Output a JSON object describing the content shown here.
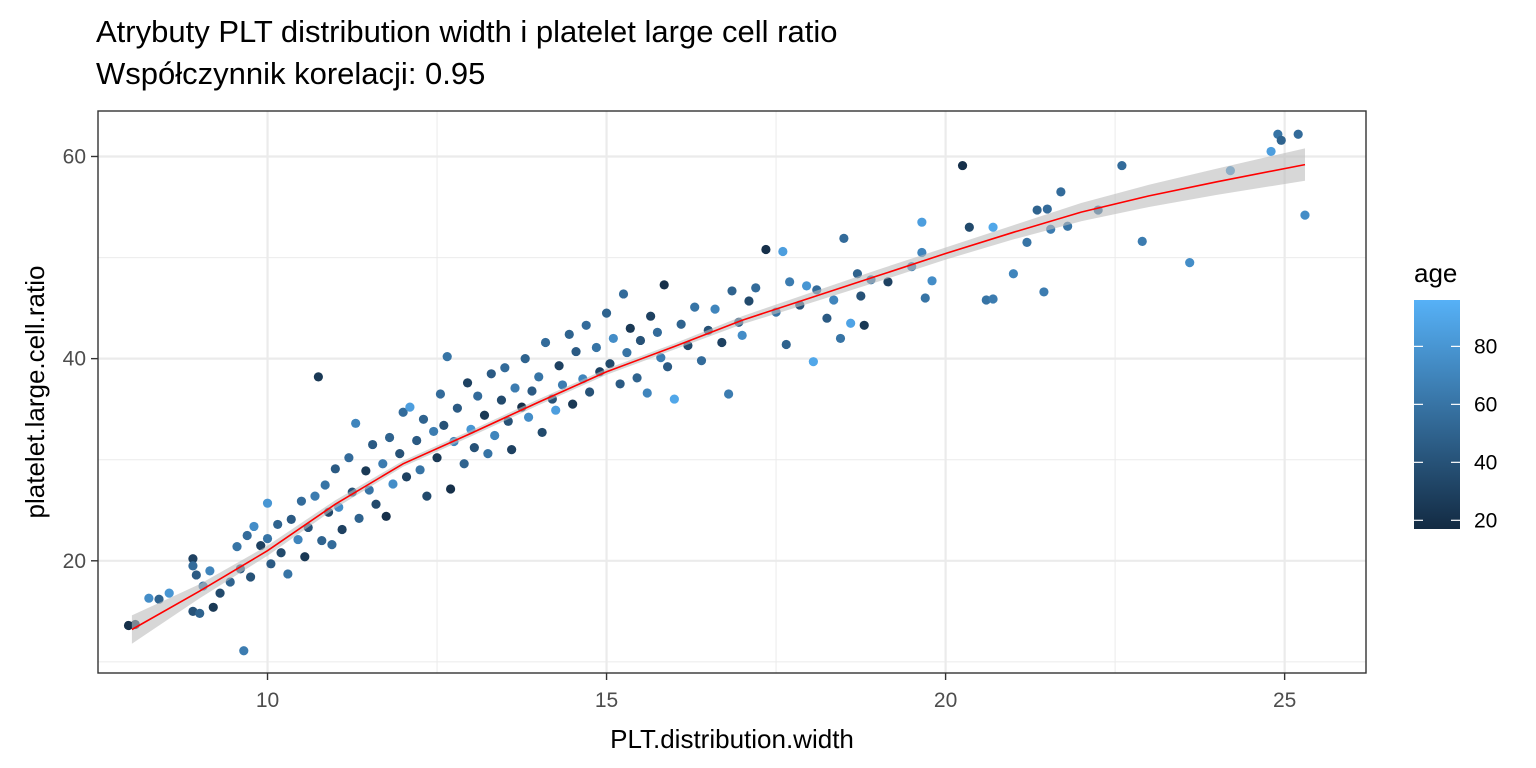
{
  "chart_data": {
    "type": "scatter",
    "title": "Atrybuty PLT distribution width i platelet large cell ratio",
    "subtitle": "Współczynnik korelacji: 0.95",
    "xlabel": "PLT.distribution.width",
    "ylabel": "platelet.large.cell.ratio",
    "xlim": [
      7.5,
      26.2
    ],
    "ylim": [
      8.9,
      64.5
    ],
    "x_ticks": [
      10,
      15,
      20,
      25
    ],
    "y_ticks": [
      20,
      40,
      60
    ],
    "grid": true,
    "legend": {
      "title": "age",
      "position": "right",
      "range": [
        17,
        96
      ],
      "ticks": [
        20,
        40,
        60,
        80
      ],
      "color_low": "#132b43",
      "color_high": "#56b1f7"
    },
    "colors": {
      "panel_bg": "#ffffff",
      "grid": "#ebebeb",
      "panel_border": "#333333",
      "smooth_line": "#ff0000",
      "smooth_band": "#bdbdbd"
    },
    "smooth": {
      "x": [
        8.0,
        9.0,
        10.0,
        11.0,
        12.0,
        13.0,
        14.0,
        15.0,
        16.0,
        17.0,
        18.0,
        19.0,
        20.0,
        21.0,
        22.0,
        23.0,
        24.0,
        25.3
      ],
      "y": [
        13.2,
        17.0,
        21.0,
        25.6,
        29.6,
        32.6,
        35.7,
        38.7,
        41.2,
        43.8,
        46.0,
        48.2,
        50.4,
        52.5,
        54.5,
        56.1,
        57.5,
        59.2
      ],
      "se_lower": [
        11.8,
        16.3,
        20.5,
        25.2,
        29.3,
        32.3,
        35.4,
        38.4,
        40.9,
        43.4,
        45.5,
        47.6,
        49.8,
        51.8,
        53.6,
        55.0,
        56.2,
        57.6
      ],
      "se_upper": [
        14.6,
        17.7,
        21.5,
        26.0,
        29.9,
        32.9,
        36.0,
        39.0,
        41.5,
        44.2,
        46.5,
        48.8,
        51.0,
        53.2,
        55.4,
        57.2,
        58.8,
        60.8
      ]
    },
    "points": [
      [
        7.95,
        13.6,
        20
      ],
      [
        8.05,
        13.7,
        25
      ],
      [
        8.25,
        16.3,
        75
      ],
      [
        8.4,
        16.2,
        50
      ],
      [
        8.55,
        16.8,
        80
      ],
      [
        9.65,
        11.1,
        65
      ],
      [
        8.9,
        20.2,
        30
      ],
      [
        8.9,
        19.5,
        55
      ],
      [
        8.95,
        18.6,
        45
      ],
      [
        8.9,
        15.0,
        40
      ],
      [
        9.0,
        14.8,
        50
      ],
      [
        9.05,
        17.5,
        60
      ],
      [
        9.15,
        19.0,
        70
      ],
      [
        9.2,
        15.4,
        25
      ],
      [
        9.3,
        16.8,
        35
      ],
      [
        9.45,
        17.9,
        50
      ],
      [
        9.55,
        21.4,
        60
      ],
      [
        9.6,
        19.2,
        45
      ],
      [
        9.7,
        22.5,
        55
      ],
      [
        9.75,
        18.4,
        40
      ],
      [
        9.8,
        23.4,
        75
      ],
      [
        9.9,
        21.5,
        30
      ],
      [
        10.0,
        22.2,
        60
      ],
      [
        10.0,
        25.7,
        80
      ],
      [
        10.05,
        19.7,
        45
      ],
      [
        10.15,
        23.6,
        50
      ],
      [
        10.2,
        20.8,
        35
      ],
      [
        10.3,
        18.7,
        60
      ],
      [
        10.35,
        24.1,
        45
      ],
      [
        10.45,
        22.1,
        70
      ],
      [
        10.5,
        25.9,
        55
      ],
      [
        10.55,
        20.4,
        25
      ],
      [
        10.6,
        23.3,
        40
      ],
      [
        10.7,
        26.4,
        65
      ],
      [
        10.75,
        38.2,
        25
      ],
      [
        10.8,
        22.0,
        50
      ],
      [
        10.85,
        27.5,
        60
      ],
      [
        10.9,
        24.8,
        35
      ],
      [
        10.95,
        21.6,
        55
      ],
      [
        11.0,
        29.1,
        45
      ],
      [
        11.05,
        25.3,
        75
      ],
      [
        11.1,
        23.1,
        30
      ],
      [
        11.2,
        30.2,
        55
      ],
      [
        11.25,
        26.8,
        40
      ],
      [
        11.3,
        33.6,
        70
      ],
      [
        11.35,
        24.2,
        50
      ],
      [
        11.45,
        28.9,
        25
      ],
      [
        11.5,
        27.0,
        60
      ],
      [
        11.55,
        31.5,
        45
      ],
      [
        11.6,
        25.6,
        35
      ],
      [
        11.7,
        29.6,
        65
      ],
      [
        11.75,
        24.4,
        20
      ],
      [
        11.8,
        32.2,
        50
      ],
      [
        11.85,
        27.6,
        75
      ],
      [
        11.95,
        30.6,
        40
      ],
      [
        12.0,
        34.7,
        55
      ],
      [
        12.05,
        28.3,
        30
      ],
      [
        12.1,
        35.2,
        85
      ],
      [
        12.2,
        31.9,
        45
      ],
      [
        12.25,
        29.0,
        60
      ],
      [
        12.3,
        34.0,
        50
      ],
      [
        12.35,
        26.4,
        35
      ],
      [
        12.45,
        32.8,
        65
      ],
      [
        12.5,
        30.2,
        25
      ],
      [
        12.55,
        36.5,
        55
      ],
      [
        12.6,
        33.4,
        40
      ],
      [
        12.65,
        40.2,
        60
      ],
      [
        12.7,
        27.1,
        20
      ],
      [
        12.75,
        31.8,
        70
      ],
      [
        12.8,
        35.1,
        45
      ],
      [
        12.9,
        29.6,
        50
      ],
      [
        12.95,
        37.6,
        30
      ],
      [
        13.0,
        33.0,
        80
      ],
      [
        13.05,
        31.2,
        40
      ],
      [
        13.1,
        36.3,
        55
      ],
      [
        13.2,
        34.4,
        25
      ],
      [
        13.25,
        30.6,
        60
      ],
      [
        13.3,
        38.5,
        45
      ],
      [
        13.35,
        32.4,
        70
      ],
      [
        13.45,
        35.9,
        35
      ],
      [
        13.5,
        39.1,
        55
      ],
      [
        13.55,
        33.8,
        40
      ],
      [
        13.6,
        31.0,
        30
      ],
      [
        13.65,
        37.1,
        65
      ],
      [
        13.75,
        35.2,
        20
      ],
      [
        13.8,
        40.0,
        50
      ],
      [
        13.85,
        34.2,
        75
      ],
      [
        13.9,
        36.8,
        45
      ],
      [
        14.0,
        38.2,
        60
      ],
      [
        14.05,
        32.7,
        35
      ],
      [
        14.1,
        41.6,
        55
      ],
      [
        14.2,
        36.0,
        40
      ],
      [
        14.25,
        34.9,
        85
      ],
      [
        14.3,
        39.3,
        30
      ],
      [
        14.35,
        37.4,
        65
      ],
      [
        14.45,
        42.4,
        50
      ],
      [
        14.5,
        35.5,
        25
      ],
      [
        14.55,
        40.7,
        45
      ],
      [
        14.65,
        38.0,
        70
      ],
      [
        14.7,
        43.3,
        55
      ],
      [
        14.75,
        36.7,
        40
      ],
      [
        14.85,
        41.1,
        60
      ],
      [
        14.9,
        38.7,
        30
      ],
      [
        15.0,
        44.5,
        50
      ],
      [
        15.05,
        39.5,
        35
      ],
      [
        15.1,
        42.0,
        75
      ],
      [
        15.2,
        37.5,
        45
      ],
      [
        15.25,
        46.4,
        55
      ],
      [
        15.3,
        40.6,
        60
      ],
      [
        15.35,
        43.0,
        25
      ],
      [
        15.45,
        38.1,
        50
      ],
      [
        15.5,
        41.8,
        40
      ],
      [
        15.6,
        36.6,
        70
      ],
      [
        15.65,
        44.2,
        30
      ],
      [
        15.75,
        42.6,
        55
      ],
      [
        15.8,
        40.1,
        65
      ],
      [
        15.85,
        47.3,
        20
      ],
      [
        15.9,
        39.2,
        45
      ],
      [
        16.0,
        36.0,
        90
      ],
      [
        16.1,
        43.4,
        50
      ],
      [
        16.2,
        41.3,
        35
      ],
      [
        16.3,
        45.1,
        60
      ],
      [
        16.4,
        39.8,
        55
      ],
      [
        16.5,
        42.8,
        40
      ],
      [
        16.6,
        44.9,
        70
      ],
      [
        16.7,
        41.6,
        30
      ],
      [
        16.8,
        36.5,
        65
      ],
      [
        16.85,
        46.7,
        50
      ],
      [
        16.95,
        43.6,
        45
      ],
      [
        17.0,
        42.3,
        75
      ],
      [
        17.1,
        45.7,
        35
      ],
      [
        17.2,
        47.0,
        55
      ],
      [
        17.35,
        50.8,
        20
      ],
      [
        17.5,
        44.6,
        60
      ],
      [
        17.6,
        50.6,
        85
      ],
      [
        17.65,
        41.4,
        50
      ],
      [
        17.7,
        47.6,
        65
      ],
      [
        17.85,
        45.3,
        40
      ],
      [
        17.95,
        47.2,
        80
      ],
      [
        18.05,
        39.7,
        90
      ],
      [
        18.1,
        46.8,
        55
      ],
      [
        18.25,
        44.0,
        45
      ],
      [
        18.35,
        45.8,
        70
      ],
      [
        18.45,
        42.0,
        60
      ],
      [
        18.5,
        51.9,
        55
      ],
      [
        18.6,
        43.5,
        88
      ],
      [
        18.7,
        48.4,
        50
      ],
      [
        18.75,
        46.2,
        40
      ],
      [
        18.8,
        43.3,
        25
      ],
      [
        18.9,
        47.8,
        60
      ],
      [
        19.15,
        47.6,
        30
      ],
      [
        19.5,
        49.1,
        65
      ],
      [
        19.65,
        53.5,
        85
      ],
      [
        19.65,
        50.5,
        70
      ],
      [
        19.7,
        46.0,
        60
      ],
      [
        19.8,
        47.7,
        75
      ],
      [
        20.25,
        59.1,
        20
      ],
      [
        20.35,
        53.0,
        35
      ],
      [
        20.6,
        45.8,
        60
      ],
      [
        20.7,
        45.9,
        65
      ],
      [
        20.7,
        53.0,
        90
      ],
      [
        21.0,
        48.4,
        70
      ],
      [
        21.2,
        51.5,
        60
      ],
      [
        21.35,
        54.7,
        50
      ],
      [
        21.45,
        46.6,
        65
      ],
      [
        21.5,
        54.8,
        55
      ],
      [
        21.55,
        52.8,
        65
      ],
      [
        21.7,
        56.5,
        55
      ],
      [
        21.8,
        53.1,
        60
      ],
      [
        22.25,
        54.7,
        55
      ],
      [
        22.6,
        59.1,
        55
      ],
      [
        22.9,
        51.6,
        65
      ],
      [
        23.6,
        49.5,
        75
      ],
      [
        24.2,
        58.6,
        80
      ],
      [
        24.8,
        60.5,
        85
      ],
      [
        24.9,
        62.2,
        60
      ],
      [
        25.2,
        62.2,
        55
      ],
      [
        25.3,
        54.2,
        75
      ],
      [
        24.95,
        61.6,
        50
      ]
    ]
  }
}
